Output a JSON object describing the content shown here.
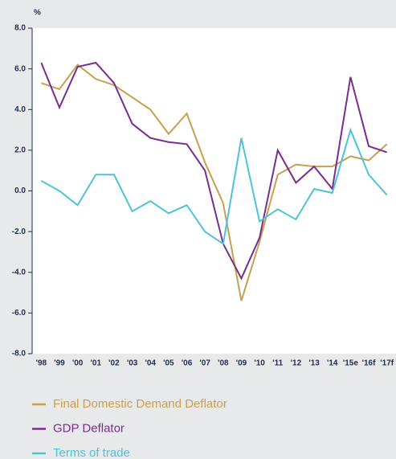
{
  "chart_data": {
    "type": "line",
    "y_label": "%",
    "categories": [
      "'98",
      "'99",
      "'00",
      "'01",
      "'02",
      "'03",
      "'04",
      "'05",
      "'06",
      "'07",
      "'08",
      "'09",
      "'10",
      "'11",
      "'12",
      "'13",
      "'14",
      "'15e",
      "'16f",
      "'17f"
    ],
    "series": [
      {
        "name": "Final Domestic Demand Deflator",
        "color": "#c7a04e",
        "values": [
          5.3,
          5.0,
          6.2,
          5.5,
          5.2,
          4.6,
          4.0,
          2.8,
          3.8,
          1.4,
          -0.6,
          -5.4,
          -2.5,
          0.8,
          1.3,
          1.2,
          1.2,
          1.7,
          1.5,
          2.3
        ]
      },
      {
        "name": "GDP Deflator",
        "color": "#7b2d8e",
        "values": [
          6.3,
          4.1,
          6.1,
          6.3,
          5.3,
          3.3,
          2.6,
          2.4,
          2.3,
          1.0,
          -2.6,
          -4.3,
          -2.3,
          2.0,
          0.4,
          1.2,
          0.1,
          5.6,
          2.2,
          1.9
        ]
      },
      {
        "name": "Terms of trade",
        "color": "#4dc3d8",
        "values": [
          0.5,
          0.0,
          -0.7,
          0.8,
          0.8,
          -1.0,
          -0.5,
          -1.1,
          -0.7,
          -2.0,
          -2.6,
          2.6,
          -1.5,
          -0.9,
          -1.4,
          0.1,
          -0.1,
          3.0,
          0.8,
          -0.2
        ]
      }
    ],
    "ylim": [
      -8,
      8
    ],
    "yticks": [
      {
        "value": 8,
        "label": "8.0"
      },
      {
        "value": 6,
        "label": "6.0"
      },
      {
        "value": 4,
        "label": "4.0"
      },
      {
        "value": 2,
        "label": "2.0"
      },
      {
        "value": 0,
        "label": "0.0"
      },
      {
        "value": -2,
        "label": "-2.0"
      },
      {
        "value": -4,
        "label": "-4.0"
      },
      {
        "value": -6,
        "label": "-6.0"
      },
      {
        "value": -8,
        "label": "-8.0"
      }
    ],
    "legend": "bottom"
  }
}
